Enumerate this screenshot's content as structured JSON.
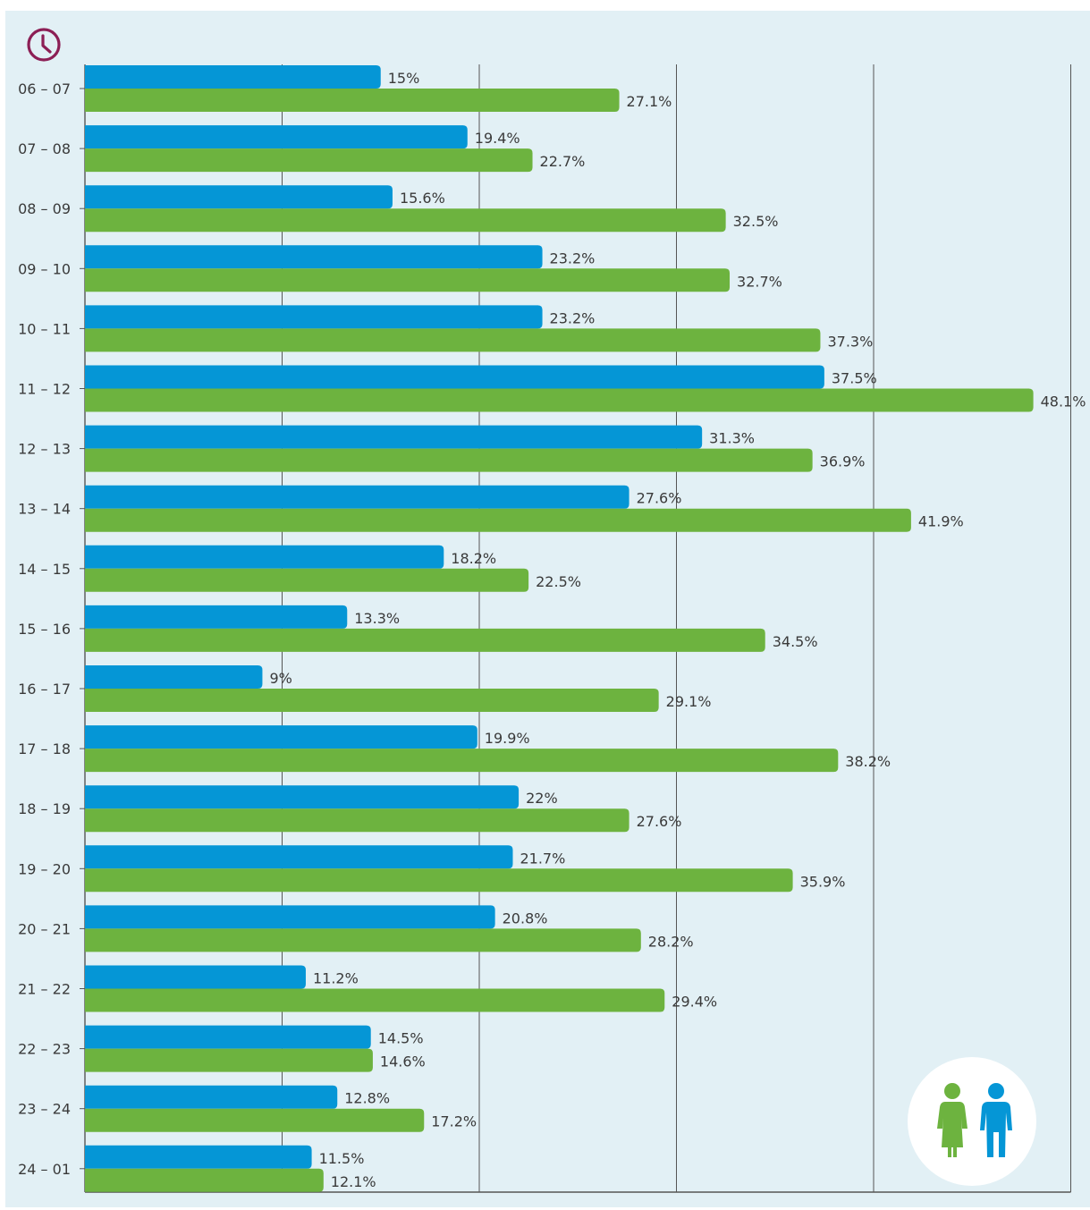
{
  "chart_data": {
    "type": "bar",
    "orientation": "horizontal",
    "title": "",
    "xlabel": "",
    "ylabel": "",
    "xlim": [
      0,
      50
    ],
    "grid": true,
    "legend": "bottom-right",
    "categories": [
      "06 – 07",
      "07 – 08",
      "08 – 09",
      "09 – 10",
      "10 – 11",
      "11 – 12",
      "12 – 13",
      "13 – 14",
      "14 – 15",
      "15 – 16",
      "16 – 17",
      "17 – 18",
      "18 – 19",
      "19 – 20",
      "20 – 21",
      "21 – 22",
      "22 – 23",
      "23 – 24",
      "24 – 01"
    ],
    "series": [
      {
        "color": "#0596d6",
        "values": [
          15,
          19.4,
          15.6,
          23.2,
          23.2,
          37.5,
          31.3,
          27.6,
          18.2,
          13.3,
          9,
          19.9,
          22,
          21.7,
          20.8,
          11.2,
          14.5,
          12.8,
          11.5
        ],
        "labels": [
          "15%",
          "19.4%",
          "15.6%",
          "23.2%",
          "23.2%",
          "37.5%",
          "31.3%",
          "27.6%",
          "18.2%",
          "13.3%",
          "9%",
          "19.9%",
          "22%",
          "21.7%",
          "20.8%",
          "11.2%",
          "14.5%",
          "12.8%",
          "11.5%"
        ]
      },
      {
        "color": "#6db33f",
        "values": [
          27.1,
          22.7,
          32.5,
          32.7,
          37.3,
          48.1,
          36.9,
          41.9,
          22.5,
          34.5,
          29.1,
          38.2,
          27.6,
          35.9,
          28.2,
          29.4,
          14.6,
          17.2,
          12.1
        ],
        "labels": [
          "27.1%",
          "22.7%",
          "32.5%",
          "32.7%",
          "37.3%",
          "48.1%",
          "36.9%",
          "41.9%",
          "22.5%",
          "34.5%",
          "29.1%",
          "38.2%",
          "27.6%",
          "35.9%",
          "28.2%",
          "29.4%",
          "14.6%",
          "17.2%",
          "12.1%"
        ]
      }
    ]
  },
  "colors": {
    "panel_background": "#e2f0f5",
    "gridline": "#555555",
    "clock_icon": "#8c1f55"
  },
  "icons": {
    "clock": "clock-icon",
    "legend": "woman-man-icon"
  }
}
